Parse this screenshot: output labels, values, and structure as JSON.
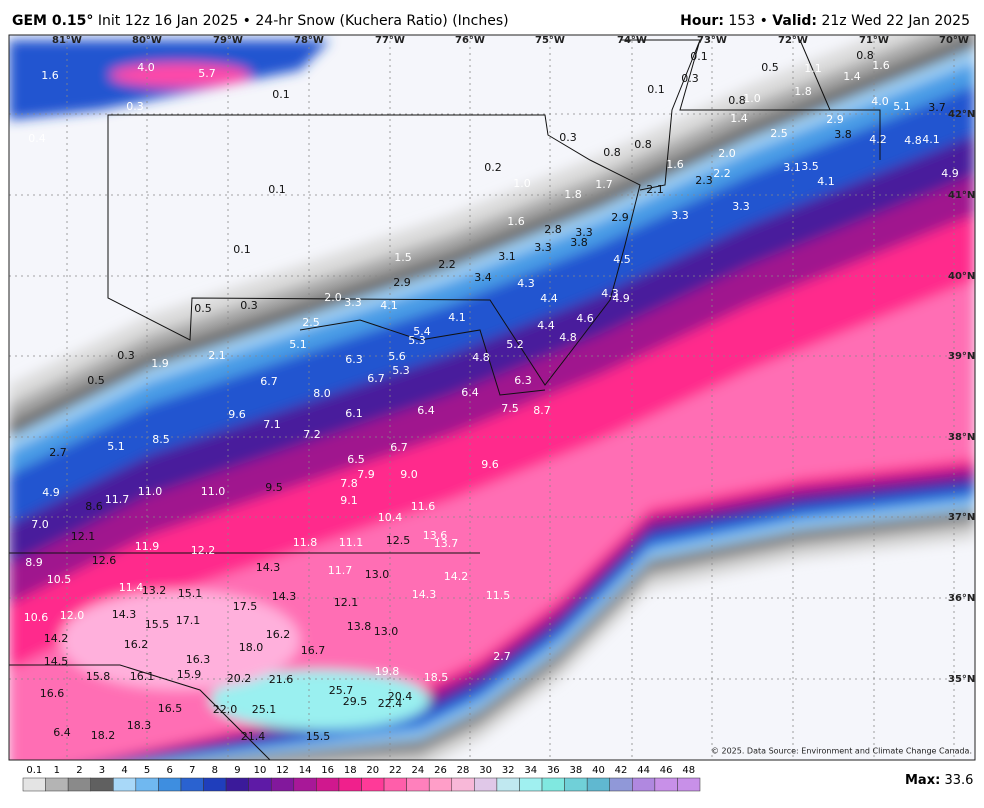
{
  "header": {
    "model": "GEM 0.15°",
    "subtitle": "Init 12z 16 Jan 2025 • 24-hr Snow (Kuchera Ratio) (Inches)",
    "hour_label": "Hour:",
    "hour": 153,
    "separator": "•",
    "valid_label": "Valid:",
    "valid": "21z Wed 22 Jan 2025"
  },
  "longitudes": [
    "81°W",
    "80°W",
    "79°W",
    "78°W",
    "77°W",
    "76°W",
    "75°W",
    "74°W",
    "73°W",
    "72°W",
    "71°W",
    "70°W"
  ],
  "latitudes": [
    "42°N",
    "41°N",
    "40°N",
    "39°N",
    "38°N",
    "37°N",
    "36°N",
    "35°N"
  ],
  "snow_labels": [
    "1.6",
    "4.0",
    "5.7",
    "0.3",
    "0.1",
    "0.4",
    "0.1",
    "0.8",
    "0.5",
    "1.1",
    "1.4",
    "1.6",
    "0.3",
    "0.1",
    "0.8",
    "1.0",
    "1.8",
    "4.0",
    "5.1",
    "3.7",
    "0.3",
    "0.8",
    "0.8",
    "1.4",
    "2.9",
    "2.5",
    "3.8",
    "4.2",
    "4.8",
    "4.1",
    "1.6",
    "2.0",
    "2.2",
    "3.1",
    "3.5",
    "4.1",
    "4.9",
    "2.3",
    "0.2",
    "1.0",
    "1.7",
    "2.1",
    "1.8",
    "3.3",
    "3.3",
    "0.1",
    "0.1",
    "1.6",
    "2.9",
    "2.8",
    "3.3",
    "3.8",
    "3.3",
    "3.1",
    "1.5",
    "2.2",
    "3.4",
    "4.5",
    "2.9",
    "4.3",
    "4.3",
    "4.9",
    "4.4",
    "0.5",
    "0.3",
    "2.0",
    "3.3",
    "4.1",
    "4.1",
    "2.5",
    "5.4",
    "5.3",
    "4.6",
    "4.4",
    "4.8",
    "5.2",
    "5.1",
    "0.3",
    "2.1",
    "1.9",
    "6.3",
    "5.6",
    "5.3",
    "4.8",
    "0.5",
    "6.7",
    "6.7",
    "6.3",
    "8.0",
    "6.4",
    "6.4",
    "7.5",
    "8.7",
    "9.6",
    "6.1",
    "7.1",
    "7.2",
    "8.5",
    "6.7",
    "5.1",
    "2.7",
    "6.5",
    "9.6",
    "7.9",
    "9.0",
    "7.8",
    "4.9",
    "11.0",
    "11.0",
    "9.5",
    "8.6",
    "11.7",
    "9.1",
    "11.6",
    "10.4",
    "7.0",
    "13.6",
    "12.1",
    "11.8",
    "11.1",
    "12.5",
    "13.7",
    "11.9",
    "12.2",
    "8.9",
    "12.6",
    "14.3",
    "11.7",
    "13.0",
    "10.5",
    "14.2",
    "11.4",
    "13.2",
    "15.1",
    "14.3",
    "12.1",
    "11.5",
    "17.5",
    "14.3",
    "10.6",
    "12.0",
    "14.3",
    "15.5",
    "17.1",
    "13.8",
    "13.0",
    "16.2",
    "14.2",
    "16.2",
    "18.0",
    "16.7",
    "16.3",
    "14.5",
    "15.8",
    "16.1",
    "15.9",
    "20.2",
    "21.6",
    "19.8",
    "18.5",
    "16.6",
    "25.7",
    "20.4",
    "22.4",
    "29.5",
    "16.5",
    "22.0",
    "25.1",
    "18.3",
    "6.4",
    "18.2",
    "21.4",
    "15.5",
    "2.7"
  ],
  "copyright": "© 2025. Data Source: Environment and Climate Change Canada.",
  "legend": {
    "ticks": [
      0.1,
      1,
      2,
      3,
      4,
      5,
      6,
      7,
      8,
      9,
      10,
      12,
      14,
      16,
      18,
      20,
      22,
      24,
      26,
      28,
      30,
      32,
      34,
      36,
      38,
      40,
      42,
      44,
      46,
      48
    ]
  },
  "max": {
    "label": "Max:",
    "value": 33.6
  }
}
